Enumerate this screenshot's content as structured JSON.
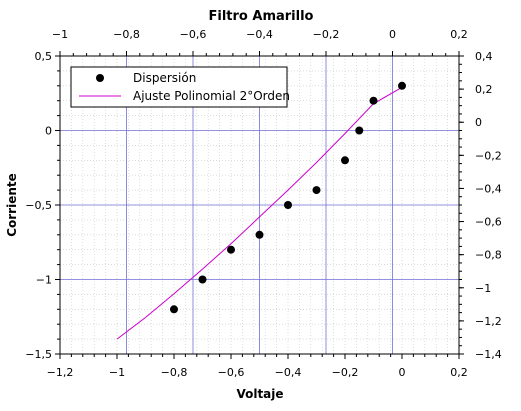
{
  "chart_data": {
    "type": "scatter",
    "title": "Filtro Amarillo",
    "xlabel": "Voltaje",
    "ylabel": "Corriente",
    "xlim": [
      -1.2,
      0.2
    ],
    "ylim": [
      -1.5,
      0.5
    ],
    "top_xlim": [
      -1,
      0.2
    ],
    "right_ylim": [
      -1.4,
      0.4
    ],
    "x_ticks": [
      -1.2,
      -1,
      -0.8,
      -0.6,
      -0.4,
      -0.2,
      0,
      0.2
    ],
    "x_tick_labels": [
      "−1,2",
      "−1",
      "−0,8",
      "−0,6",
      "−0,4",
      "−0,2",
      "0",
      "0,2"
    ],
    "y_ticks": [
      -1.5,
      -1,
      -0.5,
      0,
      0.5
    ],
    "y_tick_labels": [
      "−1,5",
      "−1",
      "−0,5",
      "0",
      "0,5"
    ],
    "top_ticks": [
      -1,
      -0.8,
      -0.6,
      -0.4,
      -0.2,
      0,
      0.2
    ],
    "top_tick_labels": [
      "−1",
      "−0,8",
      "−0,6",
      "−0,4",
      "−0,2",
      "0",
      "0,2"
    ],
    "right_ticks": [
      -1.4,
      -1.2,
      -1,
      -0.8,
      -0.6,
      -0.4,
      -0.2,
      0,
      0.2,
      0.4
    ],
    "right_tick_labels": [
      "−1,4",
      "−1,2",
      "−1",
      "−0,8",
      "−0,6",
      "−0,4",
      "−0,2",
      "0",
      "0,2",
      "0,4"
    ],
    "grid": true,
    "legend_position": "top-left",
    "series": [
      {
        "name": "Dispersión",
        "kind": "scatter",
        "color": "#000000",
        "x": [
          -0.8,
          -0.7,
          -0.6,
          -0.5,
          -0.4,
          -0.3,
          -0.2,
          -0.15,
          -0.1,
          0.0
        ],
        "y": [
          -1.2,
          -1.0,
          -0.8,
          -0.7,
          -0.5,
          -0.4,
          -0.2,
          0.0,
          0.2,
          0.3
        ]
      },
      {
        "name": "Ajuste Polinomial 2°Orden",
        "kind": "line",
        "color": "#cc00cc",
        "x": [
          -1.0,
          -0.9,
          -0.8,
          -0.7,
          -0.6,
          -0.5,
          -0.4,
          -0.3,
          -0.2,
          -0.1,
          0.0
        ],
        "y": [
          -1.4,
          -1.255,
          -1.095,
          -0.93,
          -0.76,
          -0.58,
          -0.4,
          -0.215,
          -0.02,
          0.18,
          0.29
        ]
      }
    ]
  }
}
